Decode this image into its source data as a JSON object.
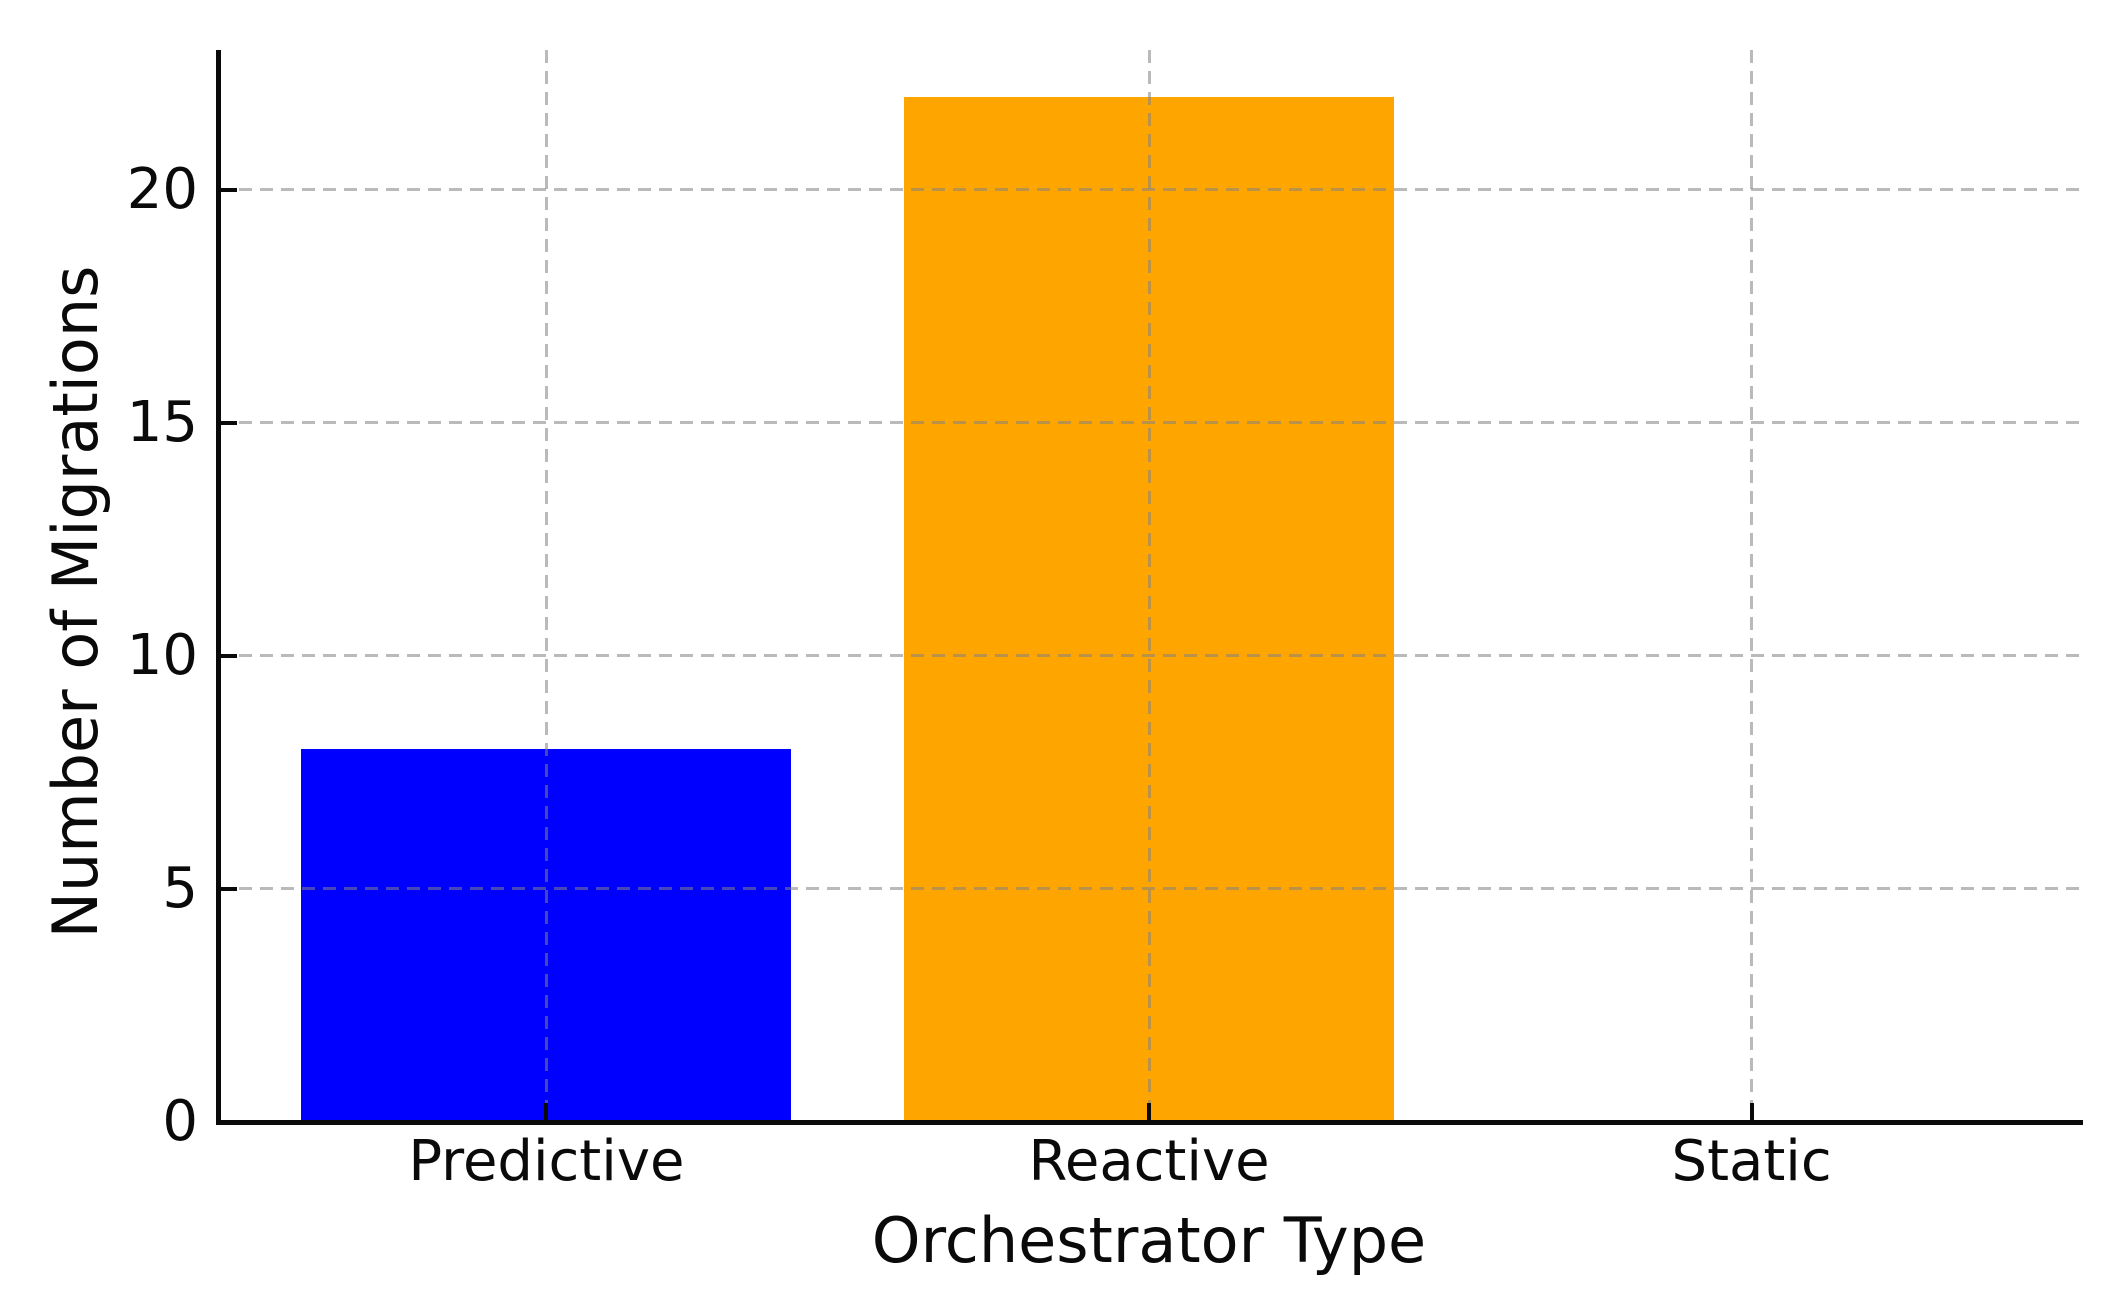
{
  "chart_data": {
    "type": "bar",
    "title": "",
    "xlabel": "Orchestrator Type",
    "ylabel": "Number of Migrations",
    "categories": [
      "Predictive",
      "Reactive",
      "Static"
    ],
    "values": [
      8,
      22,
      0
    ],
    "bar_colors": [
      "#0000ff",
      "#ffa500",
      null
    ],
    "yticks": [
      0,
      5,
      10,
      15,
      20
    ],
    "ylim": [
      0,
      23
    ],
    "xlim_slots": 3,
    "legend": "none",
    "grid": {
      "style": "dashed",
      "axes": "both",
      "color": "rgba(130,130,130,0.55)",
      "drawn_above_bars": true
    },
    "spines": {
      "visible": [
        "left",
        "bottom"
      ],
      "color": "#0a0a0a"
    },
    "background_color": "#ffffff",
    "accent_colors": {
      "predictive_blue": "#0000ff",
      "reactive_orange": "#ffa500"
    }
  }
}
